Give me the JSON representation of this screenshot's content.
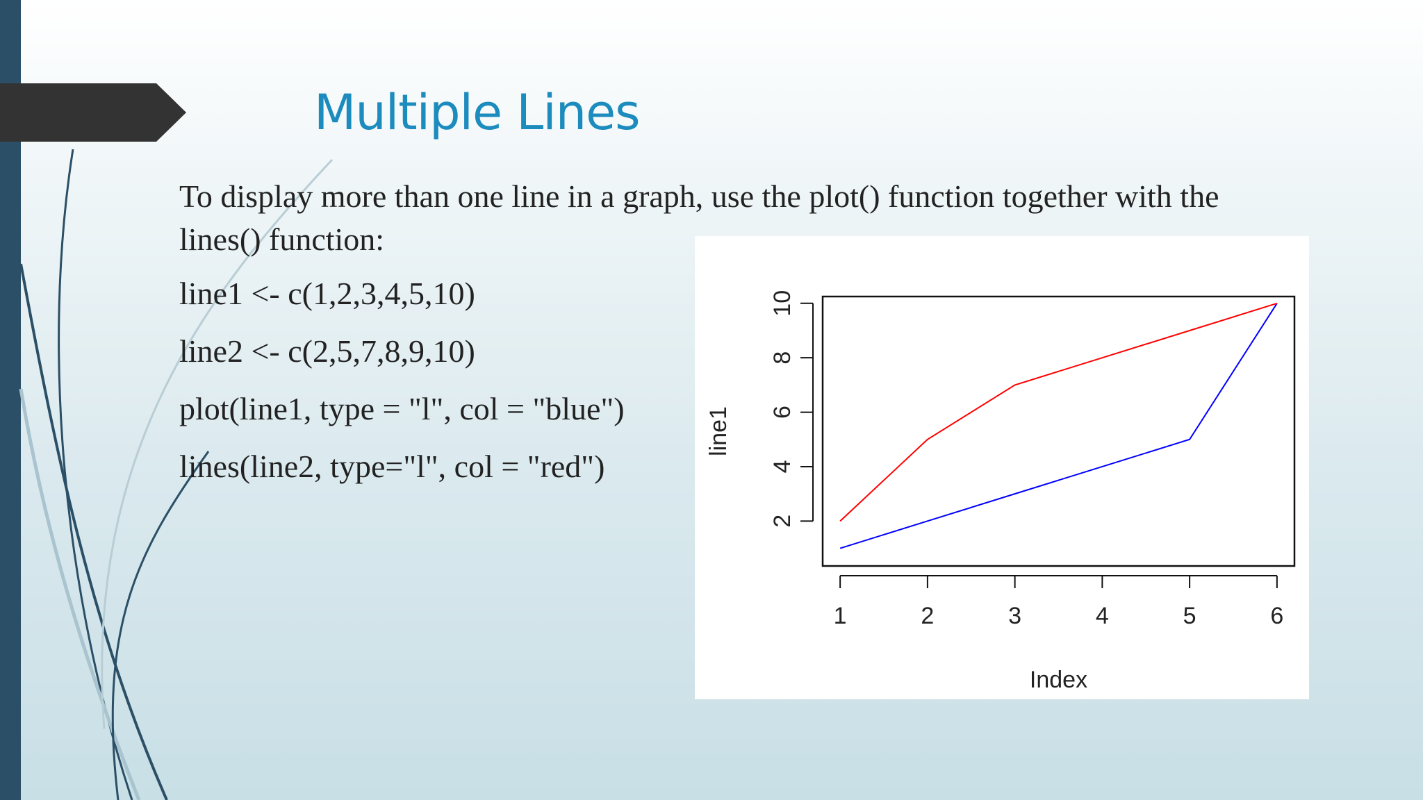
{
  "slide": {
    "title": "Multiple Lines",
    "intro": "To display more than one line in a graph, use the plot() function together with the lines() function:",
    "code": [
      "line1 <- c(1,2,3,4,5,10)",
      "line2 <- c(2,5,7,8,9,10)",
      "plot(line1, type = \"l\", col = \"blue\")",
      "lines(line2, type=\"l\", col = \"red\")"
    ]
  },
  "colors": {
    "title": "#1c8bbd",
    "accent_bar": "#2b4f66",
    "tab": "#333333"
  },
  "chart_data": {
    "type": "line",
    "x": [
      1,
      2,
      3,
      4,
      5,
      6
    ],
    "series": [
      {
        "values": [
          1,
          2,
          3,
          4,
          5,
          10
        ],
        "color": "#0000ff"
      },
      {
        "values": [
          2,
          5,
          7,
          8,
          9,
          10
        ],
        "color": "#ff0000"
      }
    ],
    "xlabel": "Index",
    "ylabel": "line1",
    "xticks": [
      1,
      2,
      3,
      4,
      5,
      6
    ],
    "yticks": [
      2,
      4,
      6,
      8,
      10
    ],
    "xlim": [
      0.8,
      6.2
    ],
    "ylim": [
      0.35,
      10.25
    ],
    "grid": false,
    "legend": "none"
  }
}
